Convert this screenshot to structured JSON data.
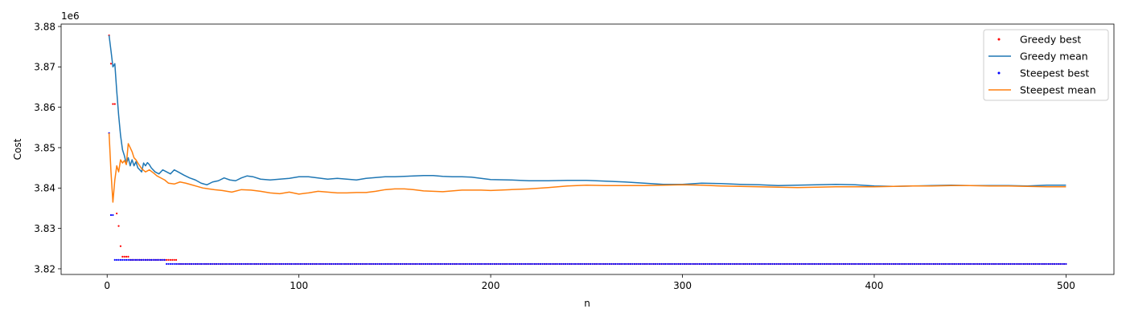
{
  "chart_data": {
    "type": "line",
    "xlabel": "n",
    "ylabel": "Cost",
    "y_offset_label": "1e6",
    "xlim": [
      -24,
      525
    ],
    "ylim": [
      3.8186,
      3.8806
    ],
    "x_ticks": [
      0,
      100,
      200,
      300,
      400,
      500
    ],
    "x_tick_labels": [
      "0",
      "100",
      "200",
      "300",
      "400",
      "500"
    ],
    "y_ticks": [
      3.82,
      3.83,
      3.84,
      3.85,
      3.86,
      3.87,
      3.88
    ],
    "y_tick_labels": [
      "3.82",
      "3.83",
      "3.84",
      "3.85",
      "3.86",
      "3.87",
      "3.88"
    ],
    "grid": false,
    "legend_position": "top-right",
    "legend": [
      "Greedy best",
      "Greedy mean",
      "Steepest best",
      "Steepest mean"
    ],
    "series": [
      {
        "name": "Greedy best",
        "style": "markers",
        "color": "#ff0000",
        "steps": [
          [
            1,
            3.8778
          ],
          [
            2,
            3.8708
          ],
          [
            3,
            3.8608
          ],
          [
            5,
            3.8337
          ],
          [
            6,
            3.8306
          ],
          [
            7,
            3.8256
          ],
          [
            8,
            3.823
          ],
          [
            12,
            3.8222
          ],
          [
            37,
            3.8212
          ],
          [
            500,
            3.8212
          ]
        ]
      },
      {
        "name": "Greedy mean",
        "style": "line",
        "color": "#1f77b4",
        "points": [
          [
            1,
            3.8778
          ],
          [
            2,
            3.874
          ],
          [
            3,
            3.87
          ],
          [
            4,
            3.8708
          ],
          [
            5,
            3.864
          ],
          [
            6,
            3.858
          ],
          [
            7,
            3.853
          ],
          [
            8,
            3.8495
          ],
          [
            9,
            3.848
          ],
          [
            10,
            3.846
          ],
          [
            11,
            3.8475
          ],
          [
            12,
            3.8455
          ],
          [
            13,
            3.847
          ],
          [
            14,
            3.8455
          ],
          [
            15,
            3.8465
          ],
          [
            16,
            3.845
          ],
          [
            17,
            3.8445
          ],
          [
            18,
            3.844
          ],
          [
            19,
            3.8462
          ],
          [
            20,
            3.8455
          ],
          [
            21,
            3.8463
          ],
          [
            22,
            3.8458
          ],
          [
            23,
            3.845
          ],
          [
            25,
            3.844
          ],
          [
            27,
            3.8435
          ],
          [
            29,
            3.8445
          ],
          [
            31,
            3.844
          ],
          [
            33,
            3.8435
          ],
          [
            35,
            3.8445
          ],
          [
            37,
            3.844
          ],
          [
            40,
            3.8432
          ],
          [
            43,
            3.8425
          ],
          [
            46,
            3.842
          ],
          [
            49,
            3.8412
          ],
          [
            52,
            3.8408
          ],
          [
            55,
            3.8415
          ],
          [
            58,
            3.8418
          ],
          [
            61,
            3.8425
          ],
          [
            64,
            3.842
          ],
          [
            67,
            3.8418
          ],
          [
            70,
            3.8425
          ],
          [
            73,
            3.843
          ],
          [
            76,
            3.8428
          ],
          [
            80,
            3.8422
          ],
          [
            85,
            3.842
          ],
          [
            90,
            3.8422
          ],
          [
            95,
            3.8424
          ],
          [
            100,
            3.8428
          ],
          [
            105,
            3.8428
          ],
          [
            110,
            3.8425
          ],
          [
            115,
            3.8422
          ],
          [
            120,
            3.8424
          ],
          [
            125,
            3.8422
          ],
          [
            130,
            3.842
          ],
          [
            135,
            3.8424
          ],
          [
            140,
            3.8426
          ],
          [
            145,
            3.8428
          ],
          [
            150,
            3.8428
          ],
          [
            155,
            3.8429
          ],
          [
            160,
            3.843
          ],
          [
            165,
            3.8431
          ],
          [
            170,
            3.8431
          ],
          [
            175,
            3.8429
          ],
          [
            180,
            3.8428
          ],
          [
            185,
            3.8428
          ],
          [
            190,
            3.8427
          ],
          [
            195,
            3.8424
          ],
          [
            200,
            3.8421
          ],
          [
            210,
            3.842
          ],
          [
            220,
            3.8418
          ],
          [
            230,
            3.8418
          ],
          [
            240,
            3.8419
          ],
          [
            250,
            3.8419
          ],
          [
            260,
            3.8417
          ],
          [
            270,
            3.8415
          ],
          [
            280,
            3.8412
          ],
          [
            290,
            3.8409
          ],
          [
            300,
            3.8409
          ],
          [
            310,
            3.8412
          ],
          [
            320,
            3.8411
          ],
          [
            330,
            3.8409
          ],
          [
            340,
            3.8408
          ],
          [
            350,
            3.8406
          ],
          [
            360,
            3.8407
          ],
          [
            370,
            3.8408
          ],
          [
            380,
            3.8409
          ],
          [
            390,
            3.8408
          ],
          [
            400,
            3.8405
          ],
          [
            410,
            3.8404
          ],
          [
            420,
            3.8405
          ],
          [
            430,
            3.8406
          ],
          [
            440,
            3.8407
          ],
          [
            450,
            3.8406
          ],
          [
            460,
            3.8406
          ],
          [
            470,
            3.8406
          ],
          [
            480,
            3.8405
          ],
          [
            490,
            3.8407
          ],
          [
            500,
            3.8407
          ]
        ]
      },
      {
        "name": "Steepest best",
        "style": "markers",
        "color": "#0000ff",
        "steps": [
          [
            1,
            3.8536
          ],
          [
            2,
            3.8333
          ],
          [
            4,
            3.8222
          ],
          [
            31,
            3.8212
          ],
          [
            500,
            3.8212
          ]
        ]
      },
      {
        "name": "Steepest mean",
        "style": "line",
        "color": "#ff7f0e",
        "points": [
          [
            1,
            3.8536
          ],
          [
            2,
            3.844
          ],
          [
            3,
            3.8365
          ],
          [
            4,
            3.842
          ],
          [
            5,
            3.8455
          ],
          [
            6,
            3.844
          ],
          [
            7,
            3.847
          ],
          [
            8,
            3.8462
          ],
          [
            9,
            3.8468
          ],
          [
            10,
            3.8458
          ],
          [
            11,
            3.851
          ],
          [
            12,
            3.85
          ],
          [
            13,
            3.849
          ],
          [
            14,
            3.8475
          ],
          [
            15,
            3.847
          ],
          [
            16,
            3.8462
          ],
          [
            17,
            3.8455
          ],
          [
            18,
            3.8448
          ],
          [
            20,
            3.844
          ],
          [
            22,
            3.8445
          ],
          [
            24,
            3.8438
          ],
          [
            26,
            3.843
          ],
          [
            28,
            3.8425
          ],
          [
            30,
            3.842
          ],
          [
            32,
            3.8412
          ],
          [
            35,
            3.841
          ],
          [
            38,
            3.8415
          ],
          [
            41,
            3.8412
          ],
          [
            44,
            3.8408
          ],
          [
            47,
            3.8404
          ],
          [
            50,
            3.84
          ],
          [
            53,
            3.8398
          ],
          [
            56,
            3.8396
          ],
          [
            60,
            3.8394
          ],
          [
            65,
            3.839
          ],
          [
            70,
            3.8396
          ],
          [
            75,
            3.8395
          ],
          [
            80,
            3.8392
          ],
          [
            85,
            3.8388
          ],
          [
            90,
            3.8386
          ],
          [
            95,
            3.839
          ],
          [
            100,
            3.8385
          ],
          [
            105,
            3.8388
          ],
          [
            110,
            3.8392
          ],
          [
            115,
            3.839
          ],
          [
            120,
            3.8388
          ],
          [
            125,
            3.8388
          ],
          [
            130,
            3.8389
          ],
          [
            135,
            3.8389
          ],
          [
            140,
            3.8392
          ],
          [
            145,
            3.8396
          ],
          [
            150,
            3.8398
          ],
          [
            155,
            3.8398
          ],
          [
            160,
            3.8396
          ],
          [
            165,
            3.8393
          ],
          [
            170,
            3.8392
          ],
          [
            175,
            3.8391
          ],
          [
            180,
            3.8393
          ],
          [
            185,
            3.8395
          ],
          [
            190,
            3.8395
          ],
          [
            195,
            3.8395
          ],
          [
            200,
            3.8394
          ],
          [
            210,
            3.8396
          ],
          [
            220,
            3.8398
          ],
          [
            230,
            3.8401
          ],
          [
            240,
            3.8405
          ],
          [
            250,
            3.8407
          ],
          [
            260,
            3.8406
          ],
          [
            270,
            3.8406
          ],
          [
            280,
            3.8406
          ],
          [
            290,
            3.8407
          ],
          [
            300,
            3.8408
          ],
          [
            310,
            3.8407
          ],
          [
            320,
            3.8405
          ],
          [
            330,
            3.8404
          ],
          [
            340,
            3.8403
          ],
          [
            350,
            3.8402
          ],
          [
            360,
            3.8401
          ],
          [
            370,
            3.8402
          ],
          [
            380,
            3.8403
          ],
          [
            390,
            3.8403
          ],
          [
            400,
            3.8403
          ],
          [
            410,
            3.8404
          ],
          [
            420,
            3.8405
          ],
          [
            430,
            3.8405
          ],
          [
            440,
            3.8406
          ],
          [
            450,
            3.8406
          ],
          [
            460,
            3.8405
          ],
          [
            470,
            3.8405
          ],
          [
            480,
            3.8404
          ],
          [
            490,
            3.8403
          ],
          [
            500,
            3.8403
          ]
        ]
      }
    ]
  }
}
